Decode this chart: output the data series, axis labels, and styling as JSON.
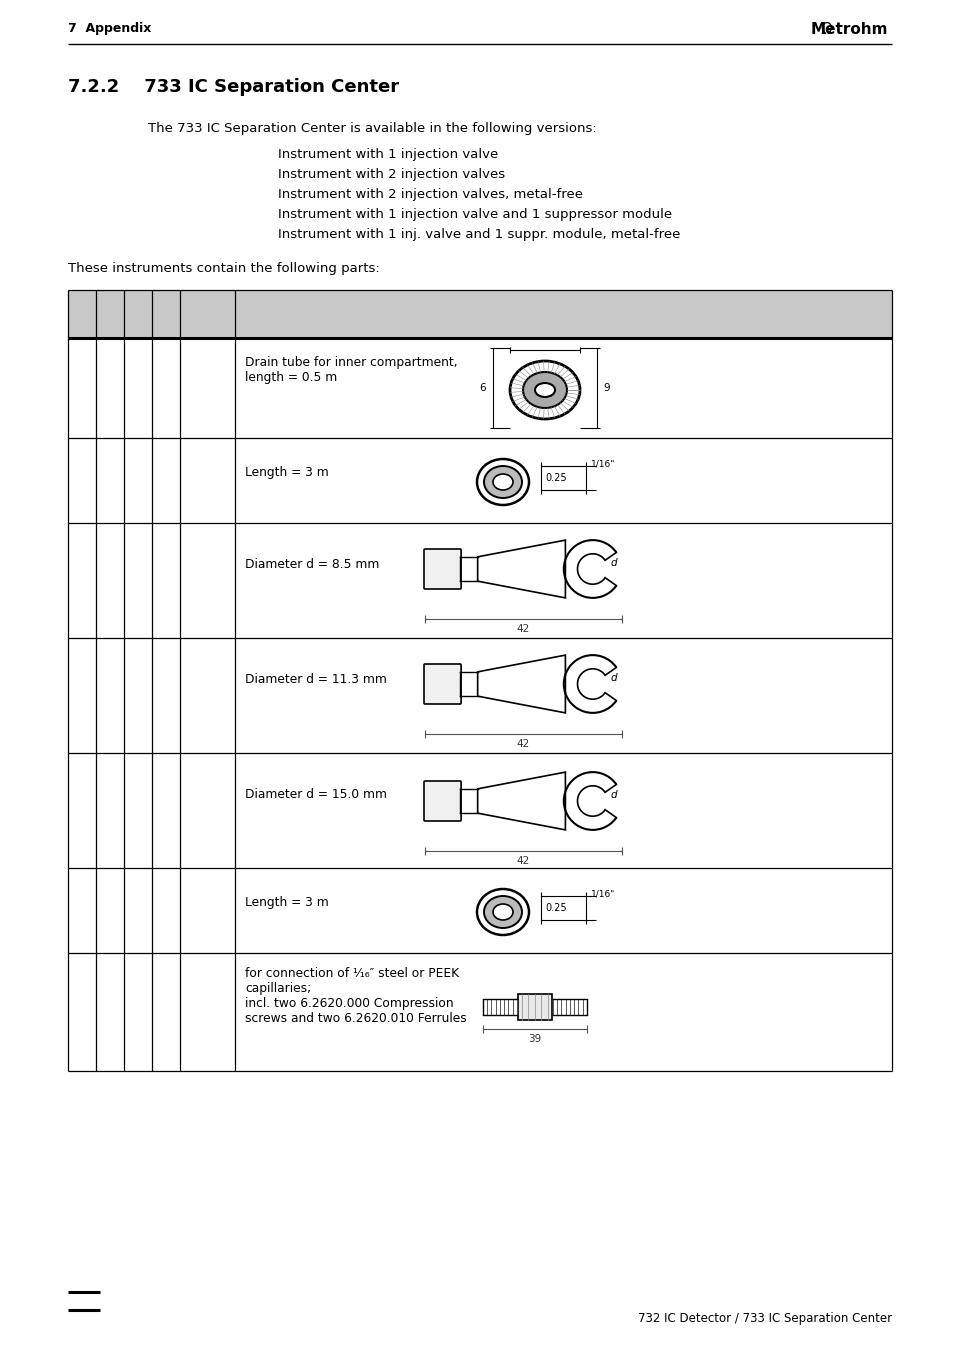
{
  "page_bg": "#ffffff",
  "header_text_left": "7  Appendix",
  "header_text_right": "Metrohm",
  "section_title": "7.2.2    733 IC Separation Center",
  "intro_text": "The 733 IC Separation Center is available in the following versions:",
  "versions": [
    "Instrument with 1 injection valve",
    "Instrument with 2 injection valves",
    "Instrument with 2 injection valves, metal-free",
    "Instrument with 1 injection valve and 1 suppressor module",
    "Instrument with 1 inj. valve and 1 suppr. module, metal-free"
  ],
  "parts_intro": "These instruments contain the following parts:",
  "footer_right": "732 IC Detector / 733 IC Separation Center",
  "table_header_color": "#c8c8c8",
  "row_descriptions": [
    "",
    "Drain tube for inner compartment,\nlength = 0.5 m",
    "Length = 3 m",
    "Diameter d = 8.5 mm",
    "Diameter d = 11.3 mm",
    "Diameter d = 15.0 mm",
    "Length = 3 m",
    "for connection of ¹⁄₁₆″ steel or PEEK\ncapillaries;\nincl. two 6.2620.000 Compression\nscrews and two 6.2620.010 Ferrules"
  ]
}
